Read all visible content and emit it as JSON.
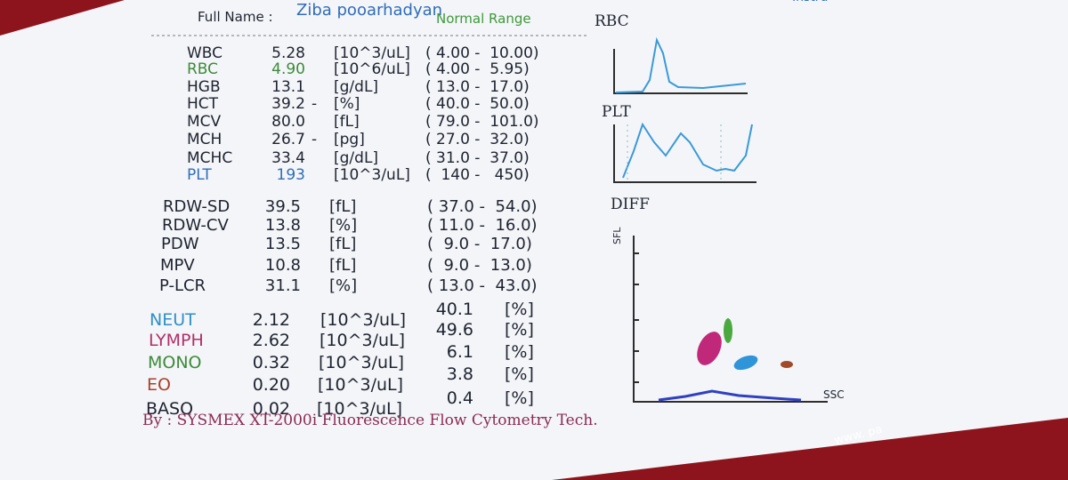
{
  "header": {
    "name_label": "Full Name :",
    "name": "Ziba pooarhadyan",
    "range_label": "Normal Range",
    "corner": "Instru"
  },
  "params": [
    {
      "name": "WBC",
      "value": "5.28",
      "unit": "[10^3/uL]",
      "range": "( 4.00 -  10.00)"
    },
    {
      "name": "RBC",
      "value": "4.90",
      "unit": "[10^6/uL]",
      "range": "( 4.00 -  5.95)",
      "color": "#3d8a3a"
    },
    {
      "name": "HGB",
      "value": "13.1",
      "unit": "[g/dL]",
      "range": "( 13.0 -  17.0)"
    },
    {
      "name": "HCT",
      "value": "39.2",
      "flag": "-",
      "unit": "[%]",
      "range": "( 40.0 -  50.0)"
    },
    {
      "name": "MCV",
      "value": "80.0",
      "unit": "[fL]",
      "range": "( 79.0 -  101.0)"
    },
    {
      "name": "MCH",
      "value": "26.7",
      "flag": "-",
      "unit": "[pg]",
      "range": "( 27.0 -  32.0)"
    },
    {
      "name": "MCHC",
      "value": "33.4",
      "unit": "[g/dL]",
      "range": "( 31.0 -  37.0)"
    },
    {
      "name": "PLT",
      "value": "193",
      "unit": "[10^3/uL]",
      "range": "(  140 -   450)",
      "color": "#2f6db8"
    }
  ],
  "indices": [
    {
      "name": "RDW-SD",
      "value": "39.5",
      "unit": "[fL]",
      "range": "( 37.0 -  54.0)"
    },
    {
      "name": "RDW-CV",
      "value": "13.8",
      "unit": "[%]",
      "range": "( 11.0 -  16.0)"
    },
    {
      "name": "PDW",
      "value": "13.5",
      "unit": "[fL]",
      "range": "(  9.0 -  17.0)"
    },
    {
      "name": "MPV",
      "value": "10.8",
      "unit": "[fL]",
      "range": "(  9.0 -  13.0)"
    },
    {
      "name": "P-LCR",
      "value": "31.1",
      "unit": "[%]",
      "range": "( 13.0 -  43.0)"
    }
  ],
  "diff": [
    {
      "name": "NEUT",
      "count": "2.12",
      "unit": "[10^3/uL]",
      "percent": "40.1",
      "percent_unit": "[%]",
      "color": "#2f8fc8"
    },
    {
      "name": "LYMPH",
      "count": "2.62",
      "unit": "[10^3/uL]",
      "percent": "49.6",
      "percent_unit": "[%]",
      "color": "#b0306a"
    },
    {
      "name": "MONO",
      "count": "0.32",
      "unit": "[10^3/uL]",
      "percent": "6.1",
      "percent_unit": "[%]",
      "color": "#3d8a3a"
    },
    {
      "name": "EO",
      "count": "0.20",
      "unit": "[10^3/uL]",
      "percent": "3.8",
      "percent_unit": "[%]",
      "color": "#a8402a"
    },
    {
      "name": "BASO",
      "count": "0.02",
      "unit": "[10^3/uL]",
      "percent": "0.4",
      "percent_unit": "[%]"
    }
  ],
  "graphs": {
    "rbc": "RBC",
    "plt": "PLT",
    "diff": "DIFF",
    "y_axis": "SFL",
    "x_axis": "SSC"
  },
  "footer": {
    "device": "By : SYSMEX XT-2000i Fluorescence Flow Cytometry Tech.",
    "website": "www. pa"
  }
}
